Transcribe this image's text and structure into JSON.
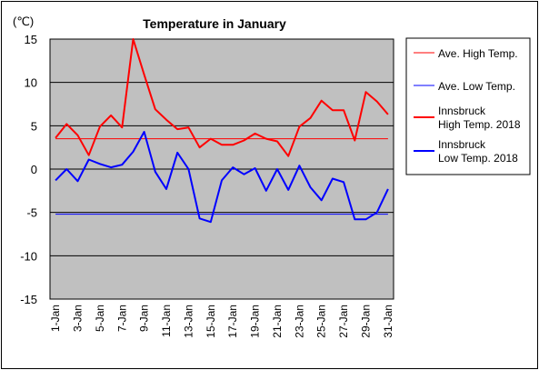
{
  "chart_data": {
    "type": "line",
    "title": "Temperature in January",
    "yunit": "(℃)",
    "ylim": [
      -15,
      15
    ],
    "yticks": [
      15,
      10,
      5,
      0,
      -5,
      -10,
      -15
    ],
    "xtick_labels": [
      "1-Jan",
      "3-Jan",
      "5-Jan",
      "7-Jan",
      "9-Jan",
      "11-Jan",
      "13-Jan",
      "15-Jan",
      "17-Jan",
      "19-Jan",
      "21-Jan",
      "23-Jan",
      "25-Jan",
      "27-Jan",
      "29-Jan",
      "31-Jan"
    ],
    "x": [
      1,
      2,
      3,
      4,
      5,
      6,
      7,
      8,
      9,
      10,
      11,
      12,
      13,
      14,
      15,
      16,
      17,
      18,
      19,
      20,
      21,
      22,
      23,
      24,
      25,
      26,
      27,
      28,
      29,
      30,
      31
    ],
    "grid": true,
    "legend_position": "right",
    "series": [
      {
        "name": "Ave. High Temp.",
        "color": "#ff0000",
        "width": 1,
        "values": [
          3.5,
          3.5,
          3.5,
          3.5,
          3.5,
          3.5,
          3.5,
          3.5,
          3.5,
          3.5,
          3.5,
          3.5,
          3.5,
          3.5,
          3.5,
          3.5,
          3.5,
          3.5,
          3.5,
          3.5,
          3.5,
          3.5,
          3.5,
          3.5,
          3.5,
          3.5,
          3.5,
          3.5,
          3.5,
          3.5,
          3.5
        ]
      },
      {
        "name": "Ave. Low Temp.",
        "color": "#0000ff",
        "width": 1,
        "values": [
          -5.2,
          -5.2,
          -5.2,
          -5.2,
          -5.2,
          -5.2,
          -5.2,
          -5.2,
          -5.2,
          -5.2,
          -5.2,
          -5.2,
          -5.2,
          -5.2,
          -5.2,
          -5.2,
          -5.2,
          -5.2,
          -5.2,
          -5.2,
          -5.2,
          -5.2,
          -5.2,
          -5.2,
          -5.2,
          -5.2,
          -5.2,
          -5.2,
          -5.2,
          -5.2,
          -5.2
        ]
      },
      {
        "name": "Innsbruck High Temp. 2018",
        "name_lines": [
          "Innsbruck",
          "High Temp. 2018"
        ],
        "color": "#ff0000",
        "width": 2,
        "values": [
          3.6,
          5.2,
          3.9,
          1.6,
          4.9,
          6.2,
          4.8,
          15.0,
          10.9,
          6.9,
          5.7,
          4.6,
          4.8,
          2.5,
          3.5,
          2.8,
          2.8,
          3.3,
          4.1,
          3.5,
          3.2,
          1.5,
          4.9,
          5.9,
          7.9,
          6.8,
          6.8,
          3.3,
          8.9,
          7.8,
          6.3
        ]
      },
      {
        "name": "Innsbruck Low Temp. 2018",
        "name_lines": [
          "Innsbruck",
          "Low Temp. 2018"
        ],
        "color": "#0000ff",
        "width": 2,
        "values": [
          -1.3,
          0.0,
          -1.4,
          1.1,
          0.6,
          0.2,
          0.5,
          2.0,
          4.3,
          -0.3,
          -2.3,
          1.9,
          0.0,
          -5.7,
          -6.1,
          -1.3,
          0.2,
          -0.6,
          0.1,
          -2.5,
          0.0,
          -2.4,
          0.4,
          -2.1,
          -3.6,
          -1.1,
          -1.5,
          -5.8,
          -5.8,
          -5.0,
          -2.3
        ]
      }
    ]
  }
}
